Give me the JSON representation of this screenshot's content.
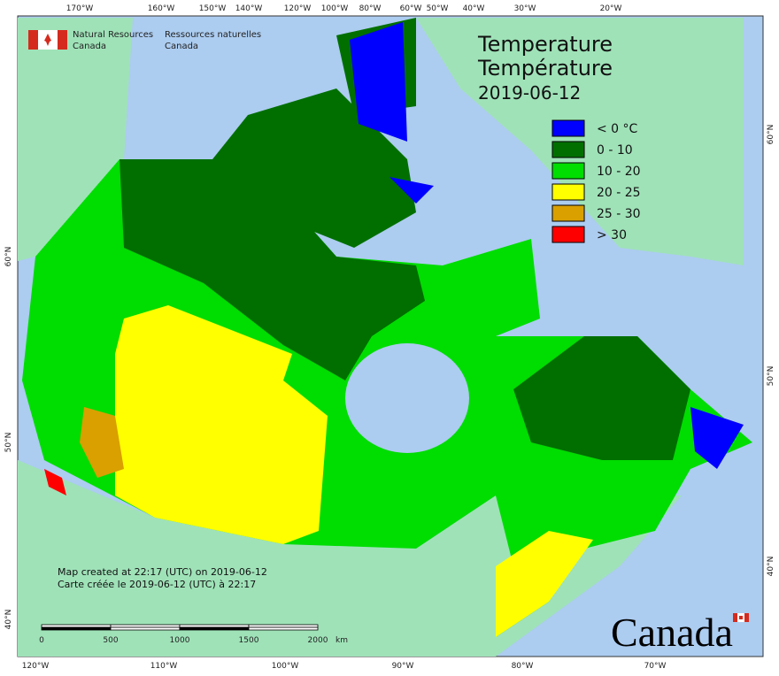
{
  "header": {
    "agency_en": [
      "Natural Resources",
      "Canada"
    ],
    "agency_fr": [
      "Ressources naturelles",
      "Canada"
    ]
  },
  "title": [
    "Temperature",
    "Température",
    "2019-06-12"
  ],
  "legend": [
    {
      "label": "< 0 °C",
      "color": "#0000ff"
    },
    {
      "label": "0 - 10",
      "color": "#006f00"
    },
    {
      "label": "10 - 20",
      "color": "#00dd00"
    },
    {
      "label": "20 - 25",
      "color": "#ffff00"
    },
    {
      "label": "25 - 30",
      "color": "#d9a000"
    },
    {
      "label": "> 30",
      "color": "#ff0000"
    }
  ],
  "top_axis": [
    "170°W",
    "160°W",
    "150°W",
    "140°W",
    "120°W",
    "100°W",
    "80°W",
    "60°W",
    "50°W",
    "40°W",
    "30°W",
    "20°W"
  ],
  "bottom_axis": [
    "120°W",
    "110°W",
    "100°W",
    "90°W",
    "80°W",
    "70°W"
  ],
  "left_axis": [
    "60°N",
    "50°N",
    "40°N"
  ],
  "right_axis": [
    "60°N",
    "50°N",
    "40°N"
  ],
  "credits": [
    "Map created at 22:17 (UTC) on 2019-06-12",
    "Carte créée le 2019-06-12 (UTC) à 22:17"
  ],
  "scale": {
    "labels": [
      "0",
      "500",
      "1000",
      "1500",
      "2000"
    ],
    "unit": "km"
  },
  "wordmark": "Canada"
}
